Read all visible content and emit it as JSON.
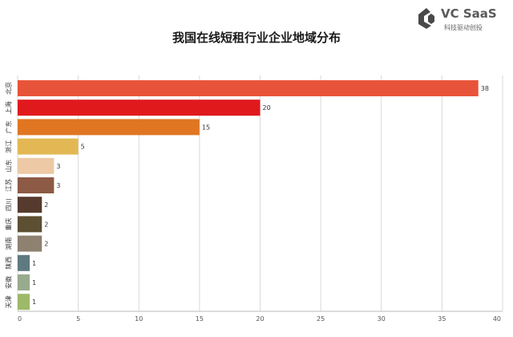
{
  "brand": {
    "name": "VC SaaS",
    "tagline": "科技驱动创投"
  },
  "chart_data": {
    "type": "bar",
    "orientation": "horizontal",
    "title": "我国在线短租行业企业地域分布",
    "xlabel": "",
    "ylabel": "",
    "xlim": [
      0,
      40
    ],
    "x_ticks": [
      0,
      5,
      10,
      15,
      20,
      25,
      30,
      35,
      40
    ],
    "grid": true,
    "legend": "none",
    "categories": [
      "北京",
      "上海",
      "广东",
      "浙江",
      "山东",
      "江苏",
      "四川",
      "重庆",
      "湖南",
      "陕西",
      "安徽",
      "天津"
    ],
    "values": [
      38,
      20,
      15,
      5,
      3,
      3,
      2,
      2,
      2,
      1,
      1,
      1
    ],
    "colors": [
      "#e8543a",
      "#e0191d",
      "#e07622",
      "#e3b854",
      "#edc9a6",
      "#8c5a45",
      "#553a2d",
      "#5c4f32",
      "#8e8170",
      "#5e7a80",
      "#98ab8e",
      "#9eb96a"
    ]
  }
}
